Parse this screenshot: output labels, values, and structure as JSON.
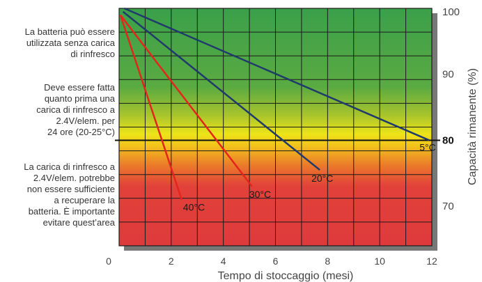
{
  "chart_data": {
    "type": "line",
    "xlabel": "Tempo di stoccaggio (mesi)",
    "ylabel": "Capacità rimanente (%)",
    "xlim": [
      0,
      12
    ],
    "ylim": [
      64,
      100
    ],
    "x_ticks": [
      0,
      2,
      4,
      6,
      8,
      10,
      12
    ],
    "y_ticks": [
      100,
      90,
      80,
      70
    ],
    "y_highlight_tick": 80,
    "grid": true,
    "threshold_line_y": 80,
    "series": [
      {
        "name": "5°C",
        "color": "#1f3a6b",
        "points": [
          [
            0.2,
            100
          ],
          [
            11.9,
            80
          ]
        ]
      },
      {
        "name": "20°C",
        "color": "#1f3a6b",
        "points": [
          [
            0.15,
            99.5
          ],
          [
            7.7,
            75.5
          ]
        ]
      },
      {
        "name": "30°C",
        "color": "#e3251b",
        "points": [
          [
            0.05,
            99
          ],
          [
            5.1,
            73
          ]
        ]
      },
      {
        "name": "40°C",
        "color": "#e3251b",
        "points": [
          [
            0.05,
            99
          ],
          [
            2.4,
            71
          ]
        ]
      }
    ],
    "background_zones": [
      "#3fa24a",
      "#e8e016",
      "#e0403a"
    ],
    "annotations": [
      {
        "text": "La batteria può essere\nutilizzata senza carica\ndi rinfresco"
      },
      {
        "text": "Deve essere fatta\nquanto prima una\ncarica di rinfresco a\n2.4V/elem. per\n24 ore (20-25°C)"
      },
      {
        "text": "La carica di rinfresco a\n2.4V/elem. potrebbe\nnon essere sufficiente\na recuperare la\nbatteria.  È importante\nevitare quest’area"
      }
    ]
  }
}
